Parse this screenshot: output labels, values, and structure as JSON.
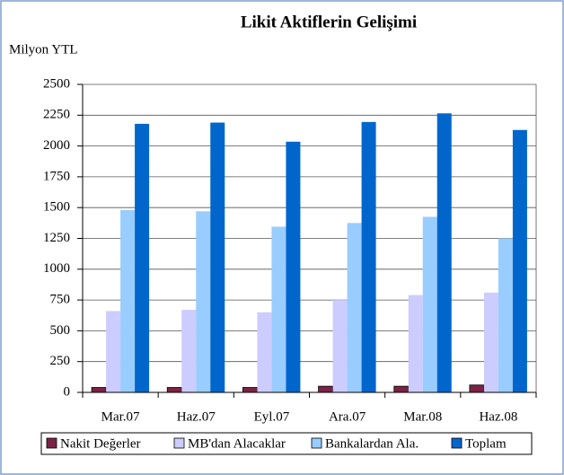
{
  "chart_data": {
    "type": "bar",
    "title": "Likit Aktiflerin Gelişimi",
    "y_label": "Milyon YTL",
    "categories": [
      "Mar.07",
      "Haz.07",
      "Eyl.07",
      "Ara.07",
      "Mar.08",
      "Haz.08"
    ],
    "series": [
      {
        "name": "Nakit Değerler",
        "color": "#7b2346",
        "values": [
          40,
          40,
          40,
          50,
          50,
          60
        ]
      },
      {
        "name": "MB'dan Alacaklar",
        "color": "#ccccff",
        "values": [
          660,
          670,
          650,
          750,
          790,
          810
        ]
      },
      {
        "name": "Bankalardan Ala.",
        "color": "#99ccff",
        "values": [
          1480,
          1470,
          1345,
          1375,
          1425,
          1250
        ]
      },
      {
        "name": "Toplam",
        "color": "#0066cc",
        "values": [
          2180,
          2190,
          2035,
          2195,
          2265,
          2130
        ]
      }
    ],
    "ylim": [
      0,
      2500
    ],
    "yticks": [
      0,
      250,
      500,
      750,
      1000,
      1250,
      1500,
      1750,
      2000,
      2250,
      2500
    ],
    "grid": true,
    "legend": "bottom"
  }
}
